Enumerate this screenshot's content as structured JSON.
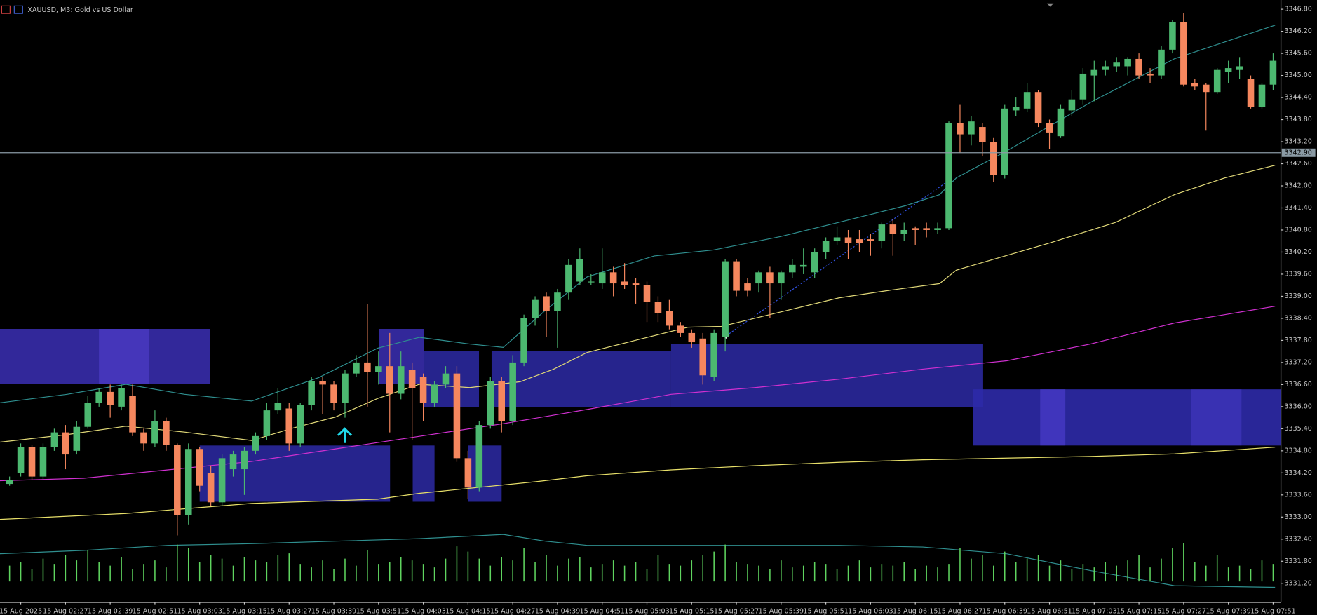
{
  "chart_data": {
    "type": "candlestick",
    "title": "XAUUSD, M3:  Gold vs US Dollar",
    "categories": [
      null,
      "15 Aug 2025",
      null,
      null,
      null,
      "15 Aug 02:27",
      null,
      null,
      null,
      "15 Aug 02:39",
      null,
      null,
      null,
      "15 Aug 02:51",
      null,
      null,
      null,
      "15 Aug 03:03",
      null,
      null,
      null,
      "15 Aug 03:15",
      null,
      null,
      null,
      "15 Aug 03:27",
      null,
      null,
      null,
      "15 Aug 03:39",
      null,
      null,
      null,
      "15 Aug 03:51",
      null,
      null,
      null,
      "15 Aug 04:03",
      null,
      null,
      null,
      "15 Aug 04:15",
      null,
      null,
      null,
      "15 Aug 04:27",
      null,
      null,
      null,
      "15 Aug 04:39",
      null,
      null,
      null,
      "15 Aug 04:51",
      null,
      null,
      null,
      "15 Aug 05:03",
      null,
      null,
      null,
      "15 Aug 05:15",
      null,
      null,
      null,
      "15 Aug 05:27",
      null,
      null,
      null,
      "15 Aug 05:39",
      null,
      null,
      null,
      "15 Aug 05:51",
      null,
      null,
      null,
      "15 Aug 06:03",
      null,
      null,
      null,
      "15 Aug 06:15",
      null,
      null,
      null,
      "15 Aug 06:27",
      null,
      null,
      null,
      "15 Aug 06:39",
      null,
      null,
      null,
      "15 Aug 06:51",
      null,
      null,
      null,
      "15 Aug 07:03",
      null,
      null,
      null,
      "15 Aug 07:15",
      null,
      null,
      null,
      "15 Aug 07:27",
      null,
      null,
      null,
      "15 Aug 07:39",
      null,
      null,
      null,
      "15 Aug 07:51"
    ],
    "open": [
      3333.9,
      3334.2,
      3334.9,
      3334.1,
      3334.9,
      3335.3,
      3334.8,
      3335.45,
      3336.1,
      3336.4,
      3336.0,
      3336.3,
      3335.3,
      3335.0,
      3335.6,
      3334.95,
      3333.05,
      3334.85,
      3334.2,
      3333.4,
      3334.3,
      3334.3,
      3334.8,
      3335.2,
      3335.9,
      3335.95,
      3335.0,
      3336.05,
      3336.7,
      3336.6,
      3336.1,
      3336.9,
      3337.2,
      3336.95,
      3337.1,
      3336.35,
      3337.0,
      3336.8,
      3336.1,
      3336.6,
      3336.9,
      3334.6,
      3333.8,
      3335.5,
      3336.7,
      3335.6,
      3337.2,
      3338.4,
      3339.0,
      3338.6,
      3339.1,
      3339.4,
      3339.4,
      3339.35,
      3339.65,
      3339.4,
      3339.35,
      3339.3,
      3338.85,
      3338.6,
      3338.2,
      3338.0,
      3337.85,
      3336.8,
      3337.9,
      3339.95,
      3339.35,
      3339.35,
      3339.65,
      3339.35,
      3339.65,
      3339.8,
      3339.65,
      3340.2,
      3340.5,
      3340.6,
      3340.55,
      3340.55,
      3340.5,
      3340.95,
      3340.7,
      3340.85,
      3340.85,
      3340.8,
      3340.85,
      3343.7,
      3343.4,
      3343.6,
      3343.2,
      3342.3,
      3344.05,
      3344.1,
      3344.55,
      3343.7,
      3343.35,
      3344.05,
      3344.35,
      3345.0,
      3345.15,
      3345.25,
      3345.25,
      3345.45,
      3345.05,
      3345.0,
      3345.7,
      3346.45,
      3344.8,
      3344.75,
      3344.55,
      3345.1,
      3345.15,
      3344.9,
      3344.15,
      3344.75
    ],
    "high": [
      3334.1,
      3335.0,
      3334.95,
      3335.0,
      3335.4,
      3335.5,
      3335.6,
      3336.3,
      3336.5,
      3336.6,
      3336.6,
      3336.6,
      3335.4,
      3335.9,
      3335.7,
      3335.0,
      3335.0,
      3334.9,
      3334.4,
      3334.7,
      3334.8,
      3334.9,
      3335.3,
      3336.1,
      3336.5,
      3336.1,
      3336.1,
      3336.8,
      3336.8,
      3336.7,
      3337.0,
      3337.4,
      3338.8,
      3337.5,
      3338.0,
      3337.5,
      3337.2,
      3336.9,
      3336.7,
      3337.1,
      3337.1,
      3334.8,
      3335.6,
      3336.8,
      3336.8,
      3337.4,
      3338.5,
      3339.0,
      3339.1,
      3339.2,
      3340.0,
      3340.3,
      3339.6,
      3340.3,
      3339.8,
      3339.9,
      3339.5,
      3339.4,
      3339.0,
      3338.9,
      3338.3,
      3338.1,
      3338.0,
      3338.1,
      3340.0,
      3340.0,
      3339.5,
      3339.7,
      3339.8,
      3339.7,
      3340.0,
      3340.3,
      3340.3,
      3340.6,
      3340.9,
      3340.8,
      3340.8,
      3340.7,
      3341.0,
      3341.1,
      3341.0,
      3340.9,
      3341.0,
      3341.0,
      3343.75,
      3344.2,
      3343.9,
      3343.7,
      3343.3,
      3344.2,
      3344.4,
      3344.8,
      3344.6,
      3343.8,
      3344.2,
      3344.6,
      3345.2,
      3345.4,
      3345.4,
      3345.5,
      3345.5,
      3345.6,
      3345.2,
      3345.8,
      3346.5,
      3346.7,
      3344.9,
      3344.8,
      3345.2,
      3345.4,
      3345.5,
      3345.0,
      3344.8,
      3345.6
    ],
    "low": [
      3333.85,
      3334.1,
      3334.0,
      3334.0,
      3334.8,
      3334.3,
      3334.7,
      3335.4,
      3336.0,
      3335.7,
      3335.9,
      3335.2,
      3334.8,
      3334.9,
      3334.8,
      3332.5,
      3332.8,
      3333.7,
      3333.3,
      3333.3,
      3334.1,
      3333.6,
      3334.7,
      3335.1,
      3335.8,
      3334.8,
      3334.9,
      3335.9,
      3335.8,
      3335.9,
      3335.7,
      3336.8,
      3336.0,
      3336.6,
      3335.3,
      3336.2,
      3335.1,
      3335.6,
      3336.0,
      3336.5,
      3334.5,
      3333.5,
      3333.7,
      3335.4,
      3335.3,
      3335.5,
      3337.1,
      3338.2,
      3337.9,
      3337.6,
      3338.9,
      3339.3,
      3339.3,
      3339.2,
      3339.0,
      3339.2,
      3338.8,
      3338.3,
      3338.3,
      3338.1,
      3337.9,
      3337.6,
      3336.6,
      3336.7,
      3337.5,
      3339.0,
      3339.0,
      3339.1,
      3338.4,
      3338.9,
      3339.5,
      3339.6,
      3339.5,
      3340.0,
      3340.4,
      3340.0,
      3340.2,
      3340.1,
      3340.3,
      3340.1,
      3340.5,
      3340.4,
      3340.6,
      3340.7,
      3340.8,
      3342.9,
      3343.1,
      3342.8,
      3342.1,
      3342.2,
      3343.9,
      3344.0,
      3343.6,
      3343.0,
      3343.3,
      3343.9,
      3344.2,
      3344.3,
      3345.0,
      3345.1,
      3345.0,
      3344.9,
      3344.8,
      3344.9,
      3345.6,
      3344.7,
      3344.6,
      3343.5,
      3344.5,
      3344.8,
      3344.9,
      3344.1,
      3344.1,
      3344.6
    ],
    "close": [
      3334.0,
      3334.9,
      3334.1,
      3334.9,
      3335.3,
      3334.7,
      3335.45,
      3336.1,
      3336.4,
      3336.05,
      3336.5,
      3335.3,
      3335.0,
      3335.6,
      3334.95,
      3333.05,
      3334.85,
      3333.85,
      3333.4,
      3334.6,
      3334.7,
      3334.8,
      3335.2,
      3335.9,
      3336.1,
      3335.0,
      3336.05,
      3336.7,
      3336.6,
      3336.1,
      3336.9,
      3337.2,
      3336.95,
      3337.1,
      3336.35,
      3337.1,
      3336.5,
      3336.1,
      3336.6,
      3336.9,
      3334.6,
      3333.8,
      3335.5,
      3336.7,
      3335.6,
      3337.2,
      3338.4,
      3338.9,
      3338.6,
      3339.1,
      3339.85,
      3340.0,
      3339.4,
      3339.65,
      3339.35,
      3339.3,
      3339.3,
      3338.85,
      3338.55,
      3338.2,
      3338.0,
      3337.75,
      3336.85,
      3338.0,
      3339.95,
      3339.15,
      3339.15,
      3339.65,
      3339.35,
      3339.65,
      3339.85,
      3339.85,
      3340.2,
      3340.5,
      3340.6,
      3340.45,
      3340.45,
      3340.5,
      3340.95,
      3340.7,
      3340.8,
      3340.8,
      3340.8,
      3340.85,
      3343.7,
      3343.4,
      3343.75,
      3343.2,
      3342.3,
      3344.1,
      3344.15,
      3344.55,
      3343.7,
      3343.45,
      3344.1,
      3344.35,
      3345.05,
      3345.15,
      3345.25,
      3345.35,
      3345.45,
      3345.0,
      3345.0,
      3345.7,
      3346.45,
      3344.75,
      3344.7,
      3344.55,
      3345.15,
      3345.2,
      3345.25,
      3344.15,
      3344.75,
      3345.4
    ],
    "volume": [
      18,
      22,
      14,
      26,
      20,
      30,
      24,
      36,
      22,
      18,
      28,
      14,
      20,
      24,
      16,
      42,
      38,
      22,
      30,
      26,
      18,
      28,
      24,
      22,
      30,
      32,
      20,
      16,
      24,
      14,
      26,
      18,
      36,
      20,
      22,
      28,
      24,
      20,
      16,
      26,
      40,
      34,
      26,
      18,
      28,
      24,
      38,
      22,
      30,
      18,
      26,
      28,
      16,
      20,
      24,
      18,
      22,
      14,
      30,
      20,
      18,
      24,
      30,
      34,
      42,
      22,
      20,
      18,
      14,
      24,
      16,
      18,
      22,
      20,
      14,
      18,
      24,
      16,
      20,
      18,
      22,
      14,
      18,
      16,
      20,
      38,
      26,
      30,
      18,
      34,
      22,
      26,
      30,
      18,
      24,
      14,
      20,
      16,
      22,
      18,
      24,
      30,
      16,
      26,
      38,
      44,
      22,
      18,
      30,
      16,
      18,
      14,
      24,
      20
    ],
    "up_color": "#4cb870",
    "down_color": "#f5875e",
    "volume_color": "#5fd45f",
    "ylim": [
      3330.68,
      3347.05
    ],
    "yticks": [
      {
        "value": 3331.2,
        "label": "3331.20"
      },
      {
        "value": 3331.8,
        "label": "3331.80"
      },
      {
        "value": 3332.4,
        "label": "3332.40"
      },
      {
        "value": 3333.0,
        "label": "3333.00"
      },
      {
        "value": 3333.6,
        "label": "3333.60"
      },
      {
        "value": 3334.2,
        "label": "3334.20"
      },
      {
        "value": 3334.8,
        "label": "3334.80"
      },
      {
        "value": 3335.4,
        "label": "3335.40"
      },
      {
        "value": 3336.0,
        "label": "3336.00"
      },
      {
        "value": 3336.6,
        "label": "3336.60"
      },
      {
        "value": 3337.2,
        "label": "3337.20"
      },
      {
        "value": 3337.8,
        "label": "3337.80"
      },
      {
        "value": 3338.4,
        "label": "3338.40"
      },
      {
        "value": 3339.0,
        "label": "3339.00"
      },
      {
        "value": 3339.6,
        "label": "3339.60"
      },
      {
        "value": 3340.2,
        "label": "3340.20"
      },
      {
        "value": 3340.8,
        "label": "3340.80"
      },
      {
        "value": 3341.4,
        "label": "3341.40"
      },
      {
        "value": 3342.0,
        "label": "3342.00"
      },
      {
        "value": 3342.6,
        "label": "3342.60"
      },
      {
        "value": 3343.2,
        "label": "3343.20"
      },
      {
        "value": 3343.8,
        "label": "3343.80"
      },
      {
        "value": 3344.4,
        "label": "3344.40"
      },
      {
        "value": 3345.0,
        "label": "3345.00"
      },
      {
        "value": 3345.6,
        "label": "3345.60"
      },
      {
        "value": 3346.2,
        "label": "3346.20"
      },
      {
        "value": 3346.8,
        "label": "3346.80"
      }
    ],
    "price_line": {
      "value": 3342.9,
      "label": "3342.90"
    },
    "grid": false
  }
}
